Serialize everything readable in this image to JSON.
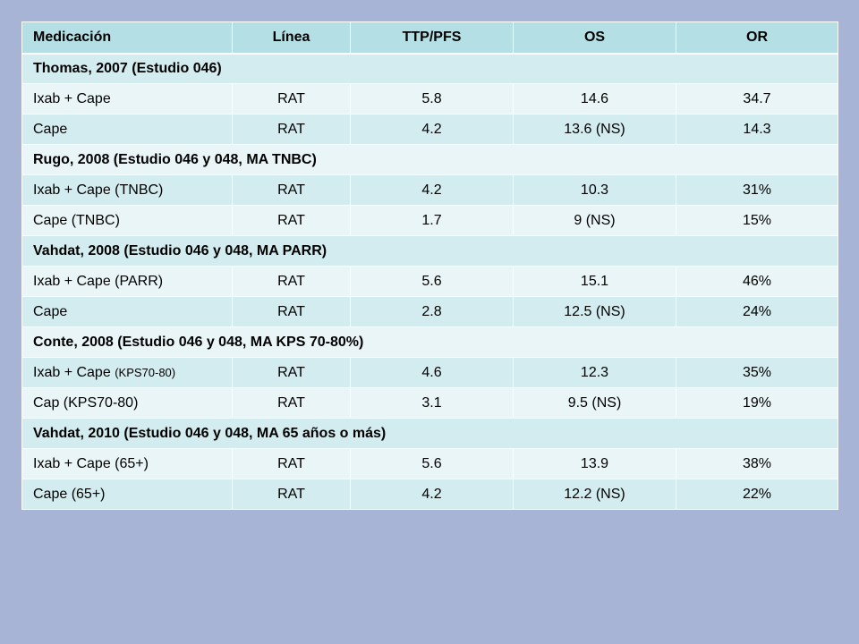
{
  "table": {
    "headers": [
      "Medicación",
      "Línea",
      "TTP/PFS",
      "OS",
      "OR"
    ],
    "groups": [
      {
        "study": "Thomas, 2007 (Estudio 046)",
        "rows": [
          {
            "med": "Ixab + Cape",
            "linea": "RAT",
            "ttp": "5.8",
            "os": "14.6",
            "or": "34.7"
          },
          {
            "med": "Cape",
            "linea": "RAT",
            "ttp": "4.2",
            "os": "13.6 (NS)",
            "or": "14.3"
          }
        ]
      },
      {
        "study": "Rugo, 2008 (Estudio 046 y 048, MA TNBC)",
        "rows": [
          {
            "med": "Ixab + Cape (TNBC)",
            "linea": "RAT",
            "ttp": "4.2",
            "os": "10.3",
            "or": "31%"
          },
          {
            "med": "Cape (TNBC)",
            "linea": "RAT",
            "ttp": "1.7",
            "os": "9 (NS)",
            "or": "15%"
          }
        ]
      },
      {
        "study": "Vahdat, 2008 (Estudio 046 y 048, MA PARR)",
        "rows": [
          {
            "med": "Ixab + Cape (PARR)",
            "linea": "RAT",
            "ttp": "5.6",
            "os": "15.1",
            "or": "46%"
          },
          {
            "med": "Cape",
            "linea": "RAT",
            "ttp": "2.8",
            "os": "12.5 (NS)",
            "or": "24%"
          }
        ]
      },
      {
        "study": "Conte, 2008 (Estudio 046 y 048, MA KPS 70-80%)",
        "rows": [
          {
            "med": "Ixab + Cape",
            "med_suffix": "(KPS70-80)",
            "linea": "RAT",
            "ttp": "4.6",
            "os": "12.3",
            "or": "35%"
          },
          {
            "med": "Cap (KPS70-80)",
            "linea": "RAT",
            "ttp": "3.1",
            "os": "9.5 (NS)",
            "or": "19%"
          }
        ]
      },
      {
        "study": "Vahdat, 2010 (Estudio 046 y 048, MA 65 años o más)",
        "rows": [
          {
            "med": "Ixab + Cape (65+)",
            "linea": "RAT",
            "ttp": "5.6",
            "os": "13.9",
            "or": "38%"
          },
          {
            "med": "Cape (65+)",
            "linea": "RAT",
            "ttp": "4.2",
            "os": "12.2 (NS)",
            "or": "22%"
          }
        ]
      }
    ]
  }
}
